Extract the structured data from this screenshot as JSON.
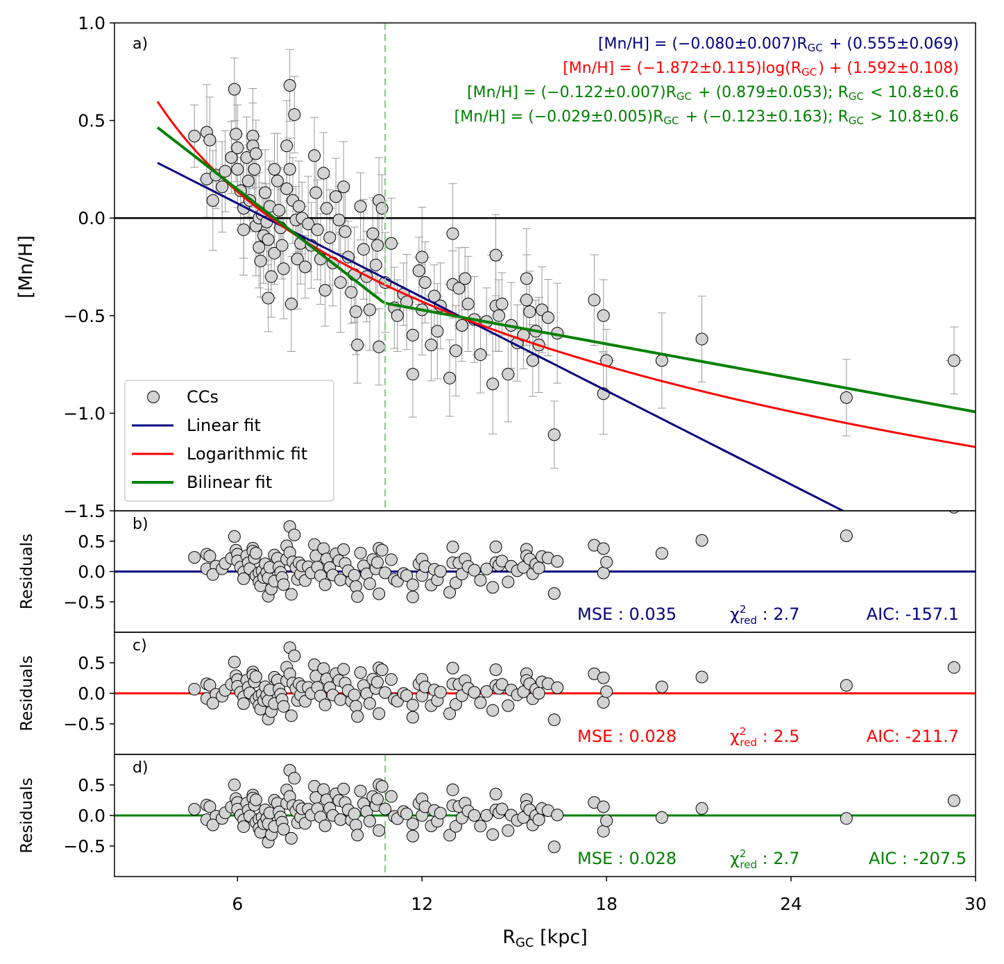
{
  "colors": {
    "linear": "#000080",
    "logarithmic": "#ff0000",
    "bilinear": "#008000",
    "break_line": "#90d090",
    "points_fill": "#d3d3d3",
    "errorbar": "#999999"
  },
  "chart_data": {
    "type": "scatter",
    "xlabel": "R_GC [kpc]",
    "xlabel_main": "R",
    "xlabel_sub": "GC",
    "xlabel_tail": " [kpc]",
    "xlim": [
      2,
      30
    ],
    "xticks": [
      6,
      12,
      18,
      24,
      30
    ],
    "xtick_labels": [
      "6",
      "12",
      "18",
      "24",
      "30"
    ],
    "break_radius": 10.8,
    "legend_placement": "lower left",
    "panels": [
      {
        "id": "a",
        "tag": "a)",
        "ylabel": "[Mn/H]",
        "ylim": [
          -1.5,
          1.0
        ],
        "yticks": [
          1.0,
          0.5,
          0.0,
          -0.5,
          -1.0,
          -1.5
        ],
        "ytick_labels": [
          "1.0",
          "0.5",
          "0.0",
          "−0.5",
          "−1.0",
          "−1.5"
        ],
        "equations": [
          {
            "text": "[Mn/H] = (−0.080±0.007)R_GC + (0.555±0.069)",
            "color": "#000080"
          },
          {
            "text": "[Mn/H] = (−1.872±0.115)log(R_GC) + (1.592±0.108)",
            "color": "#ff0000"
          },
          {
            "text": "[Mn/H] = (−0.122±0.007)R_GC + (0.879±0.053);    R_GC < 10.8±0.6",
            "color": "#008000"
          },
          {
            "text": "[Mn/H] = (−0.029±0.005)R_GC + (−0.123±0.163);    R_GC > 10.8±0.6",
            "color": "#008000"
          }
        ],
        "legend": [
          "CCs",
          "Linear fit",
          "Logarithmic fit",
          "Bilinear fit"
        ],
        "fits": {
          "linear": {
            "slope": -0.08,
            "intercept": 0.555,
            "x_range": [
              3.4,
              30
            ]
          },
          "logarithmic": {
            "a": -1.872,
            "b": 1.592,
            "x_range": [
              3.4,
              30
            ]
          },
          "bilinear": {
            "slope_in": -0.122,
            "intercept_in": 0.879,
            "slope_out": -0.029,
            "intercept_out": -0.123,
            "x_break": 10.8,
            "x_range": [
              3.4,
              30
            ]
          }
        },
        "points": [
          [
            4.6,
            0.42
          ],
          [
            5.0,
            0.44
          ],
          [
            5.1,
            0.4
          ],
          [
            5.0,
            0.2
          ],
          [
            5.3,
            0.22
          ],
          [
            5.2,
            0.09
          ],
          [
            5.5,
            0.16
          ],
          [
            5.6,
            0.24
          ],
          [
            5.8,
            0.31
          ],
          [
            5.9,
            0.66
          ],
          [
            5.95,
            0.43
          ],
          [
            6.0,
            0.36
          ],
          [
            6.0,
            0.25
          ],
          [
            6.1,
            0.14
          ],
          [
            6.2,
            0.05
          ],
          [
            6.2,
            -0.06
          ],
          [
            6.3,
            0.31
          ],
          [
            6.35,
            0.19
          ],
          [
            6.4,
            0.09
          ],
          [
            6.5,
            0.42
          ],
          [
            6.5,
            0.37
          ],
          [
            6.55,
            0.25
          ],
          [
            6.6,
            0.33
          ],
          [
            6.6,
            -0.04
          ],
          [
            6.7,
            0.0
          ],
          [
            6.7,
            -0.15
          ],
          [
            6.75,
            -0.22
          ],
          [
            6.8,
            0.02
          ],
          [
            6.85,
            -0.09
          ],
          [
            6.9,
            0.13
          ],
          [
            6.95,
            -0.02
          ],
          [
            7.0,
            -0.41
          ],
          [
            7.0,
            -0.11
          ],
          [
            7.05,
            0.06
          ],
          [
            7.1,
            -0.3
          ],
          [
            7.2,
            0.25
          ],
          [
            7.2,
            -0.18
          ],
          [
            7.3,
            0.19
          ],
          [
            7.35,
            0.04
          ],
          [
            7.4,
            -0.05
          ],
          [
            7.45,
            -0.14
          ],
          [
            7.5,
            -0.26
          ],
          [
            7.6,
            0.37
          ],
          [
            7.6,
            0.15
          ],
          [
            7.7,
            0.68
          ],
          [
            7.7,
            0.25
          ],
          [
            7.75,
            -0.44
          ],
          [
            7.8,
            0.09
          ],
          [
            7.85,
            0.53
          ],
          [
            7.9,
            -0.01
          ],
          [
            7.95,
            -0.21
          ],
          [
            8.0,
            0.06
          ],
          [
            8.05,
            -0.13
          ],
          [
            8.1,
            0.0
          ],
          [
            8.2,
            -0.25
          ],
          [
            8.3,
            -0.03
          ],
          [
            8.4,
            -0.14
          ],
          [
            8.5,
            0.32
          ],
          [
            8.55,
            0.13
          ],
          [
            8.6,
            -0.06
          ],
          [
            8.7,
            -0.21
          ],
          [
            8.8,
            0.23
          ],
          [
            8.85,
            -0.37
          ],
          [
            8.9,
            0.05
          ],
          [
            9.0,
            -0.1
          ],
          [
            9.1,
            -0.23
          ],
          [
            9.2,
            0.11
          ],
          [
            9.3,
            -0.01
          ],
          [
            9.35,
            -0.33
          ],
          [
            9.45,
            0.16
          ],
          [
            9.5,
            -0.07
          ],
          [
            9.6,
            -0.2
          ],
          [
            9.7,
            -0.38
          ],
          [
            9.8,
            -0.29
          ],
          [
            9.85,
            -0.48
          ],
          [
            9.9,
            -0.65
          ],
          [
            10.0,
            0.06
          ],
          [
            10.1,
            -0.16
          ],
          [
            10.2,
            -0.3
          ],
          [
            10.3,
            -0.47
          ],
          [
            10.4,
            -0.08
          ],
          [
            10.5,
            -0.24
          ],
          [
            10.55,
            -0.14
          ],
          [
            10.6,
            0.09
          ],
          [
            10.6,
            -0.66
          ],
          [
            10.7,
            0.05
          ],
          [
            10.8,
            -0.33
          ],
          [
            11.0,
            -0.13
          ],
          [
            11.1,
            -0.46
          ],
          [
            11.2,
            -0.5
          ],
          [
            11.4,
            -0.39
          ],
          [
            11.5,
            -0.43
          ],
          [
            11.7,
            -0.8
          ],
          [
            11.7,
            -0.6
          ],
          [
            11.9,
            -0.27
          ],
          [
            12.0,
            -0.2
          ],
          [
            12.0,
            -0.47
          ],
          [
            12.1,
            -0.33
          ],
          [
            12.3,
            -0.65
          ],
          [
            12.4,
            -0.4
          ],
          [
            12.5,
            -0.58
          ],
          [
            12.6,
            -0.45
          ],
          [
            12.9,
            -0.82
          ],
          [
            13.0,
            -0.34
          ],
          [
            13.0,
            -0.08
          ],
          [
            13.1,
            -0.68
          ],
          [
            13.2,
            -0.36
          ],
          [
            13.3,
            -0.55
          ],
          [
            13.4,
            -0.31
          ],
          [
            13.5,
            -0.44
          ],
          [
            13.7,
            -0.52
          ],
          [
            13.9,
            -0.7
          ],
          [
            14.1,
            -0.53
          ],
          [
            14.3,
            -0.85
          ],
          [
            14.4,
            -0.45
          ],
          [
            14.4,
            -0.19
          ],
          [
            14.5,
            -0.5
          ],
          [
            14.6,
            -0.44
          ],
          [
            14.8,
            -0.8
          ],
          [
            14.9,
            -0.55
          ],
          [
            15.1,
            -0.64
          ],
          [
            15.3,
            -0.6
          ],
          [
            15.4,
            -0.31
          ],
          [
            15.4,
            -0.42
          ],
          [
            15.5,
            -0.48
          ],
          [
            15.6,
            -0.73
          ],
          [
            15.7,
            -0.58
          ],
          [
            15.8,
            -0.65
          ],
          [
            15.9,
            -0.47
          ],
          [
            16.1,
            -0.51
          ],
          [
            16.3,
            -1.11
          ],
          [
            16.4,
            -0.59
          ],
          [
            17.6,
            -0.42
          ],
          [
            17.9,
            -0.9
          ],
          [
            17.9,
            -0.5
          ],
          [
            18.0,
            -0.73
          ],
          [
            19.8,
            -0.73
          ],
          [
            21.1,
            -0.62
          ],
          [
            25.8,
            -0.92
          ],
          [
            29.3,
            -0.73
          ]
        ]
      },
      {
        "id": "b",
        "tag": "b)",
        "ylabel": "Residuals",
        "fit": "linear",
        "ylim": [
          -1.0,
          1.0
        ],
        "yticks": [
          0.5,
          0.0,
          -0.5
        ],
        "ytick_labels": [
          "0.5",
          "0.0",
          "−0.5"
        ],
        "stats": {
          "mse_label": "MSE :",
          "mse": "0.035",
          "chi_label": "χ",
          "chi_sup": "2",
          "chi_sub": "red",
          "chi_colon": " :",
          "chi": "2.7",
          "aic_label": "AIC:",
          "aic": "-157.1"
        }
      },
      {
        "id": "c",
        "tag": "c)",
        "ylabel": "Residuals",
        "fit": "logarithmic",
        "ylim": [
          -1.0,
          1.0
        ],
        "yticks": [
          0.5,
          0.0,
          -0.5
        ],
        "ytick_labels": [
          "0.5",
          "0.0",
          "−0.5"
        ],
        "stats": {
          "mse_label": "MSE :",
          "mse": "0.028",
          "chi_label": "χ",
          "chi_sup": "2",
          "chi_sub": "red",
          "chi_colon": " :",
          "chi": "2.5",
          "aic_label": "AIC:",
          "aic": "-211.7"
        }
      },
      {
        "id": "d",
        "tag": "d)",
        "ylabel": "Residuals",
        "fit": "bilinear",
        "ylim": [
          -1.0,
          1.0
        ],
        "yticks": [
          0.5,
          0.0,
          -0.5
        ],
        "ytick_labels": [
          "0.5",
          "0.0",
          "−0.5"
        ],
        "stats": {
          "mse_label": "MSE :",
          "mse": "0.028",
          "chi_label": "χ",
          "chi_sup": "2",
          "chi_sub": "red",
          "chi_colon": " :",
          "chi": "2.7",
          "aic_label": "AIC :",
          "aic": "-207.5"
        }
      }
    ]
  }
}
